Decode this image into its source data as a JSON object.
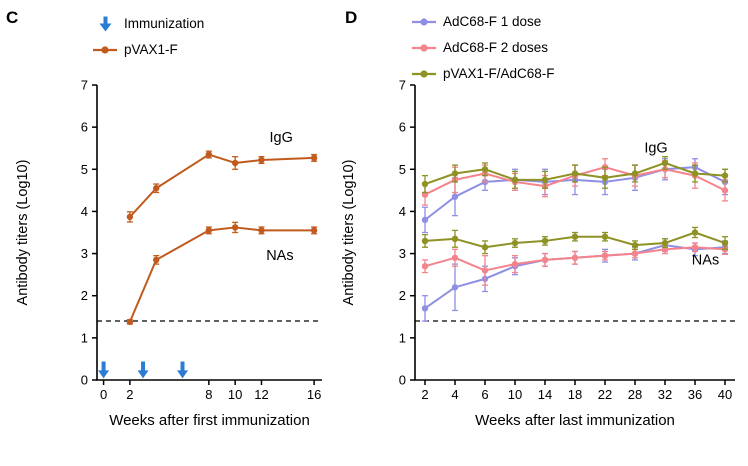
{
  "figure": {
    "background": "#ffffff",
    "text_color": "#000000"
  },
  "panels": [
    {
      "label": "C",
      "legend": [
        {
          "icon": "down-arrow-icon",
          "label": "Immunization",
          "color": "#2b7cd3"
        },
        {
          "icon": "line-dot-icon",
          "label": "pVAX1-F",
          "color": "#c15a1d"
        }
      ]
    },
    {
      "label": "D",
      "legend": [
        {
          "icon": "line-dot-icon",
          "label": "AdC68-F 1 dose",
          "color": "#8f8fe6"
        },
        {
          "icon": "line-dot-icon",
          "label": "AdC68-F 2 doses",
          "color": "#f5838b"
        },
        {
          "icon": "line-dot-icon",
          "label": "pVAX1-F/AdC68-F",
          "color": "#8e9123"
        }
      ]
    }
  ],
  "chart_data": [
    {
      "type": "line",
      "panel": "C",
      "title": "",
      "xlabel": "Weeks after first immunization",
      "ylabel": "Antibody titers (Log10)",
      "x_type": "linear",
      "xlim": [
        -0.5,
        16.6
      ],
      "ylim": [
        0,
        7
      ],
      "yticks": [
        0,
        1,
        2,
        3,
        4,
        5,
        6,
        7
      ],
      "xticks": [
        0,
        2,
        8,
        10,
        12,
        16
      ],
      "grid": false,
      "legend_position": "top",
      "detection_limit": 1.4,
      "immunization_arrows_weeks": [
        0,
        3,
        6
      ],
      "arrow_color": "#2b7cd3",
      "series": [
        {
          "name": "pVAX1-F",
          "color": "#c15a1d",
          "measures": [
            {
              "group": "IgG",
              "x": [
                2,
                4,
                8,
                10,
                12,
                16
              ],
              "y": [
                3.87,
                4.55,
                5.35,
                5.15,
                5.22,
                5.27
              ],
              "err": [
                0.12,
                0.1,
                0.08,
                0.15,
                0.08,
                0.08
              ]
            },
            {
              "group": "NAs",
              "x": [
                2,
                4,
                8,
                10,
                12,
                16
              ],
              "y": [
                1.38,
                2.85,
                3.55,
                3.62,
                3.55,
                3.55
              ],
              "err": [
                0.05,
                0.1,
                0.08,
                0.12,
                0.08,
                0.08
              ]
            }
          ]
        }
      ],
      "annotations": [
        {
          "text": "IgG",
          "x": 13.5,
          "y": 5.75
        },
        {
          "text": "NAs",
          "x": 13.4,
          "y": 2.95
        }
      ]
    },
    {
      "type": "line",
      "panel": "D",
      "title": "",
      "xlabel": "Weeks after last immunization",
      "ylabel": "Antibody titers (Log10)",
      "x_type": "categorical",
      "categories": [
        2,
        4,
        6,
        10,
        14,
        18,
        22,
        28,
        32,
        36,
        40
      ],
      "ylim": [
        0,
        7
      ],
      "yticks": [
        0,
        1,
        2,
        3,
        4,
        5,
        6,
        7
      ],
      "grid": false,
      "legend_position": "top",
      "detection_limit": 1.4,
      "series": [
        {
          "name": "AdC68-F 1 dose",
          "color": "#8f8fe6",
          "measures": [
            {
              "group": "IgG",
              "y": [
                3.8,
                4.35,
                4.7,
                4.75,
                4.7,
                4.75,
                4.7,
                4.8,
                5.0,
                5.05,
                4.7
              ],
              "err": [
                0.3,
                0.45,
                0.2,
                0.25,
                0.3,
                0.35,
                0.3,
                0.3,
                0.25,
                0.2,
                0.3
              ]
            },
            {
              "group": "NAs",
              "y": [
                1.7,
                2.2,
                2.4,
                2.7,
                2.85,
                2.9,
                2.95,
                3.0,
                3.2,
                3.1,
                3.15
              ],
              "err": [
                0.3,
                0.55,
                0.3,
                0.2,
                0.15,
                0.15,
                0.15,
                0.15,
                0.15,
                0.15,
                0.15
              ]
            }
          ]
        },
        {
          "name": "AdC68-F 2 doses",
          "color": "#f5838b",
          "measures": [
            {
              "group": "IgG",
              "y": [
                4.4,
                4.75,
                4.9,
                4.7,
                4.6,
                4.85,
                5.05,
                4.85,
                5.0,
                4.85,
                4.5
              ],
              "err": [
                0.25,
                0.3,
                0.2,
                0.2,
                0.25,
                0.25,
                0.2,
                0.25,
                0.2,
                0.3,
                0.25
              ]
            },
            {
              "group": "NAs",
              "y": [
                2.7,
                2.9,
                2.6,
                2.75,
                2.85,
                2.9,
                2.95,
                3.0,
                3.1,
                3.15,
                3.1
              ],
              "err": [
                0.15,
                0.2,
                0.35,
                0.2,
                0.15,
                0.15,
                0.1,
                0.1,
                0.1,
                0.1,
                0.12
              ]
            }
          ]
        },
        {
          "name": "pVAX1-F/AdC68-F",
          "color": "#8e9123",
          "measures": [
            {
              "group": "IgG",
              "y": [
                4.65,
                4.9,
                5.0,
                4.75,
                4.75,
                4.9,
                4.8,
                4.9,
                5.15,
                4.9,
                4.85
              ],
              "err": [
                0.2,
                0.2,
                0.15,
                0.2,
                0.2,
                0.2,
                0.25,
                0.2,
                0.15,
                0.2,
                0.15
              ]
            },
            {
              "group": "NAs",
              "y": [
                3.3,
                3.35,
                3.15,
                3.25,
                3.3,
                3.4,
                3.4,
                3.2,
                3.25,
                3.5,
                3.25
              ],
              "err": [
                0.15,
                0.2,
                0.15,
                0.1,
                0.1,
                0.1,
                0.1,
                0.1,
                0.1,
                0.12,
                0.15
              ]
            }
          ]
        }
      ],
      "annotations": [
        {
          "text": "IgG",
          "x": 7.7,
          "y": 5.5
        },
        {
          "text": "NAs",
          "x": 9.35,
          "y": 2.85
        }
      ]
    }
  ]
}
